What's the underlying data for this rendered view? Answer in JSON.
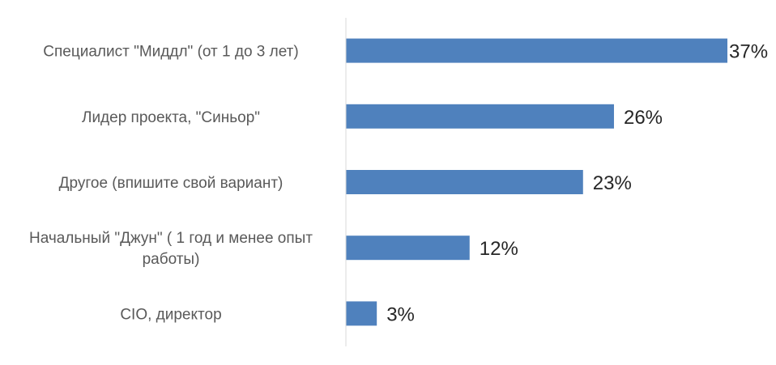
{
  "chart_data": {
    "type": "bar",
    "orientation": "horizontal",
    "categories": [
      "Специалист \"Миддл\" (от 1 до 3 лет)",
      "Лидер проекта, \"Синьор\"",
      "Другое (впишите свой вариант)",
      "Начальный \"Джун\" ( 1 год и менее опыт работы)",
      "CIO, директор"
    ],
    "category_label_lines": [
      [
        "Специалист \"Миддл\" (от 1 до 3 лет)"
      ],
      [
        "Лидер проекта, \"Синьор\""
      ],
      [
        "Другое (впишите свой вариант)"
      ],
      [
        "Начальный \"Джун\" ( 1 год и менее опыт",
        "работы)"
      ],
      [
        "CIO, директор"
      ]
    ],
    "values": [
      37,
      26,
      23,
      12,
      3
    ],
    "data_labels": [
      "37%",
      "26%",
      "23%",
      "12%",
      "3%"
    ],
    "xlim": [
      0,
      37
    ],
    "grid": false,
    "legend": "none",
    "colors": {
      "bar": "#4f81bd",
      "axis": "#d9d9d9"
    }
  }
}
